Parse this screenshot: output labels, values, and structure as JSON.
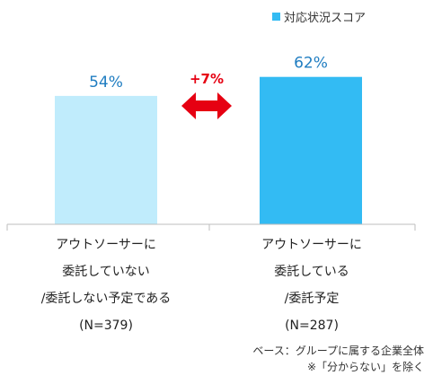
{
  "chart_data": {
    "type": "bar",
    "categories": [
      [
        "アウトソーサーに",
        "委託していない",
        "/委託しない予定である",
        "(N=379)"
      ],
      [
        "アウトソーサーに",
        "委託している",
        "/委託予定",
        "(N=287)"
      ]
    ],
    "series": [
      {
        "name": "対応状況スコア",
        "values": [
          54,
          62
        ],
        "labels": [
          "54%",
          "62%"
        ]
      }
    ],
    "colors": [
      "#c0ecfc",
      "#33bbf3"
    ],
    "label_color": "#1f7dc1",
    "ylim": [
      0,
      100
    ],
    "difference_label": "+7%",
    "difference_color": "#e60012",
    "legend_position": "top-right",
    "grid": false
  },
  "footnotes": [
    "ベース：グループに属する企業全体",
    "※「分からない」を除く"
  ]
}
